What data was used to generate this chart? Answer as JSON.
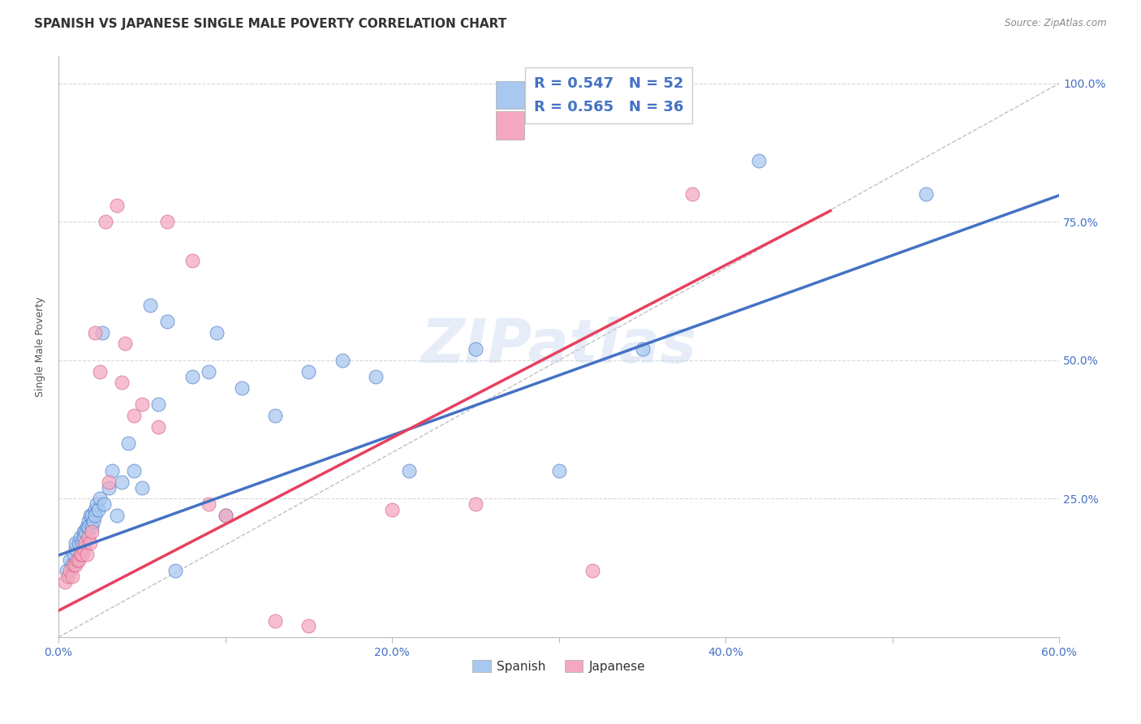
{
  "title": "SPANISH VS JAPANESE SINGLE MALE POVERTY CORRELATION CHART",
  "source": "Source: ZipAtlas.com",
  "ylabel_label": "Single Male Poverty",
  "watermark": "ZIPatlas",
  "xlim": [
    0.0,
    0.6
  ],
  "ylim": [
    0.0,
    1.05
  ],
  "xticks": [
    0.0,
    0.1,
    0.2,
    0.3,
    0.4,
    0.5,
    0.6
  ],
  "xticklabels": [
    "0.0%",
    "",
    "20.0%",
    "",
    "40.0%",
    "",
    "60.0%"
  ],
  "yticks_right": [
    0.0,
    0.25,
    0.5,
    0.75,
    1.0
  ],
  "yticklabels_right": [
    "",
    "25.0%",
    "50.0%",
    "75.0%",
    "100.0%"
  ],
  "spanish_color": "#a8c8f0",
  "japanese_color": "#f4a8c0",
  "trendline_spanish_color": "#4472c4",
  "trendline_japanese_color": "#e84060",
  "diagonal_color": "#c0c0c0",
  "legend_R_spanish": "R = 0.547",
  "legend_N_spanish": "N = 52",
  "legend_R_japanese": "R = 0.565",
  "legend_N_japanese": "N = 36",
  "spanish_x": [
    0.005,
    0.007,
    0.008,
    0.009,
    0.01,
    0.01,
    0.012,
    0.013,
    0.014,
    0.015,
    0.015,
    0.016,
    0.017,
    0.018,
    0.018,
    0.019,
    0.02,
    0.02,
    0.021,
    0.022,
    0.022,
    0.023,
    0.024,
    0.025,
    0.026,
    0.027,
    0.03,
    0.032,
    0.035,
    0.038,
    0.042,
    0.045,
    0.05,
    0.055,
    0.06,
    0.065,
    0.07,
    0.08,
    0.09,
    0.095,
    0.1,
    0.11,
    0.13,
    0.15,
    0.17,
    0.19,
    0.21,
    0.25,
    0.3,
    0.35,
    0.42,
    0.52
  ],
  "spanish_y": [
    0.12,
    0.14,
    0.13,
    0.15,
    0.16,
    0.17,
    0.17,
    0.18,
    0.17,
    0.19,
    0.18,
    0.19,
    0.2,
    0.21,
    0.2,
    0.22,
    0.2,
    0.22,
    0.21,
    0.23,
    0.22,
    0.24,
    0.23,
    0.25,
    0.55,
    0.24,
    0.27,
    0.3,
    0.22,
    0.28,
    0.35,
    0.3,
    0.27,
    0.6,
    0.42,
    0.57,
    0.12,
    0.47,
    0.48,
    0.55,
    0.22,
    0.45,
    0.4,
    0.48,
    0.5,
    0.47,
    0.3,
    0.52,
    0.3,
    0.52,
    0.86,
    0.8
  ],
  "japanese_x": [
    0.004,
    0.006,
    0.007,
    0.008,
    0.009,
    0.01,
    0.011,
    0.012,
    0.013,
    0.014,
    0.015,
    0.016,
    0.017,
    0.018,
    0.019,
    0.02,
    0.022,
    0.025,
    0.028,
    0.03,
    0.035,
    0.038,
    0.04,
    0.045,
    0.05,
    0.06,
    0.065,
    0.08,
    0.09,
    0.1,
    0.13,
    0.15,
    0.2,
    0.25,
    0.32,
    0.38
  ],
  "japanese_y": [
    0.1,
    0.11,
    0.12,
    0.11,
    0.13,
    0.13,
    0.14,
    0.14,
    0.15,
    0.15,
    0.16,
    0.17,
    0.15,
    0.18,
    0.17,
    0.19,
    0.55,
    0.48,
    0.75,
    0.28,
    0.78,
    0.46,
    0.53,
    0.4,
    0.42,
    0.38,
    0.75,
    0.68,
    0.24,
    0.22,
    0.03,
    0.02,
    0.23,
    0.24,
    0.12,
    0.8
  ],
  "trendline_spanish_intercept": 0.148,
  "trendline_spanish_slope": 1.083,
  "trendline_japanese_intercept": 0.048,
  "trendline_japanese_slope": 1.56,
  "grid_color": "#d8d8d8",
  "background_color": "#ffffff",
  "title_fontsize": 11,
  "axis_label_fontsize": 9,
  "tick_fontsize": 10,
  "legend_fontsize": 13
}
